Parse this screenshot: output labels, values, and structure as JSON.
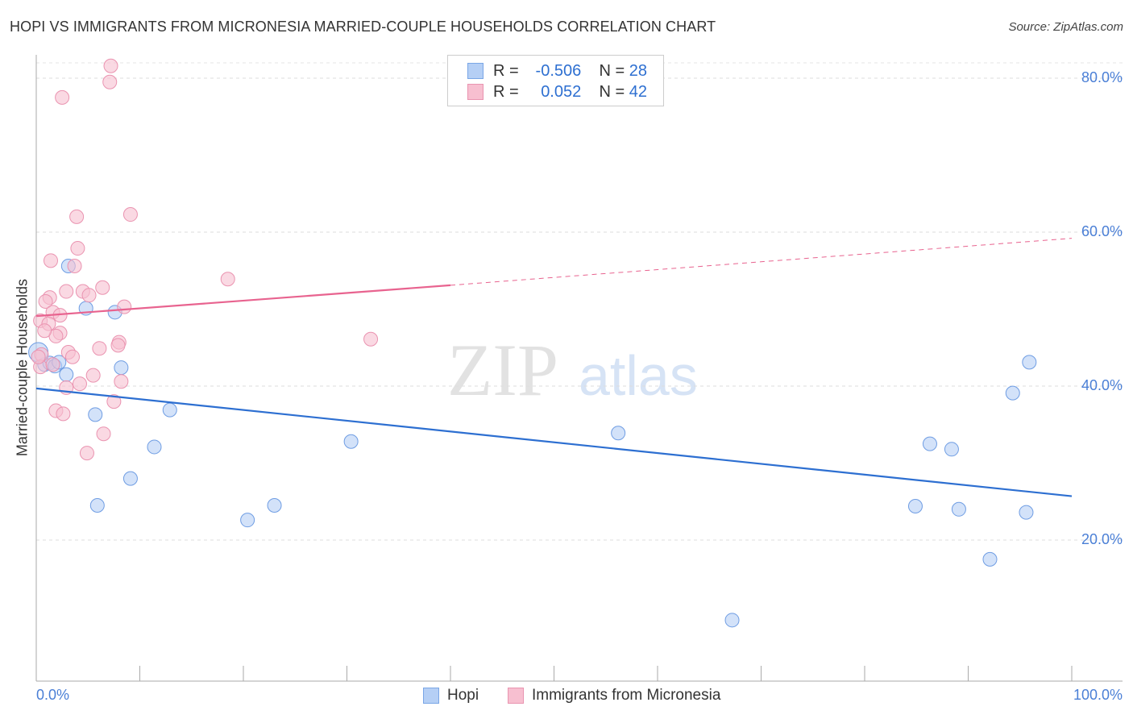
{
  "title": "HOPI VS IMMIGRANTS FROM MICRONESIA MARRIED-COUPLE HOUSEHOLDS CORRELATION CHART",
  "source": "Source: ZipAtlas.com",
  "watermark": "ZIPatlas",
  "colors": {
    "hopi": "#2d6fd1",
    "hopi_fill": "#b5cff5",
    "micronesia": "#e8638f",
    "micronesia_fill": "#f7bfd0"
  },
  "legend": {
    "hopi": {
      "r_label": "R =",
      "r": "-0.506",
      "n_label": "N =",
      "n": "28"
    },
    "micronesia": {
      "r_label": "R =",
      "r": "0.052",
      "n_label": "N =",
      "n": "42"
    }
  },
  "chart_data": {
    "type": "scatter",
    "title": "HOPI VS IMMIGRANTS FROM MICRONESIA MARRIED-COUPLE HOUSEHOLDS CORRELATION CHART",
    "xlabel": "",
    "ylabel": "Married-couple Households",
    "xlim": [
      0,
      100
    ],
    "ylim": [
      0,
      85
    ],
    "x_tick_labels": [
      "0.0%",
      "100.0%"
    ],
    "y_ticks": [
      20,
      40,
      60,
      80
    ],
    "y_tick_labels": [
      "20.0%",
      "40.0%",
      "60.0%",
      "80.0%"
    ],
    "legend_labels": [
      "Hopi",
      "Immigrants from Micronesia"
    ],
    "grid": true,
    "series": [
      {
        "name": "Hopi",
        "points": [
          [
            3.1,
            55.6
          ],
          [
            4.8,
            50.1
          ],
          [
            7.6,
            49.6
          ],
          [
            0.8,
            42.8
          ],
          [
            1.3,
            43.0
          ],
          [
            1.8,
            42.6
          ],
          [
            2.2,
            43.1
          ],
          [
            2.9,
            41.5
          ],
          [
            8.2,
            42.4
          ],
          [
            5.7,
            36.3
          ],
          [
            12.9,
            36.9
          ],
          [
            11.4,
            32.1
          ],
          [
            5.9,
            24.5
          ],
          [
            9.1,
            28.0
          ],
          [
            20.4,
            22.6
          ],
          [
            23.0,
            24.5
          ],
          [
            30.4,
            32.8
          ],
          [
            56.2,
            33.9
          ],
          [
            67.2,
            9.6
          ],
          [
            86.3,
            32.5
          ],
          [
            88.4,
            31.8
          ],
          [
            84.9,
            24.4
          ],
          [
            89.1,
            24.0
          ],
          [
            95.6,
            23.6
          ],
          [
            92.1,
            17.5
          ],
          [
            94.3,
            39.1
          ],
          [
            95.9,
            43.1
          ],
          [
            0.2,
            44.4
          ]
        ],
        "trend": {
          "x": [
            0,
            100
          ],
          "y": [
            39.7,
            25.7
          ]
        }
      },
      {
        "name": "Immigrants from Micronesia",
        "points": [
          [
            7.2,
            81.6
          ],
          [
            7.1,
            79.5
          ],
          [
            2.5,
            77.5
          ],
          [
            3.9,
            62.0
          ],
          [
            9.1,
            62.3
          ],
          [
            4.0,
            57.9
          ],
          [
            1.4,
            56.3
          ],
          [
            3.7,
            55.6
          ],
          [
            18.5,
            53.9
          ],
          [
            6.4,
            52.8
          ],
          [
            2.9,
            52.3
          ],
          [
            4.5,
            52.3
          ],
          [
            5.1,
            51.8
          ],
          [
            1.3,
            51.5
          ],
          [
            0.9,
            51.0
          ],
          [
            8.5,
            50.3
          ],
          [
            1.6,
            49.6
          ],
          [
            2.3,
            49.2
          ],
          [
            0.4,
            48.5
          ],
          [
            1.2,
            48.1
          ],
          [
            2.3,
            46.9
          ],
          [
            1.9,
            46.5
          ],
          [
            32.3,
            46.1
          ],
          [
            8.0,
            45.7
          ],
          [
            7.9,
            45.3
          ],
          [
            6.1,
            44.9
          ],
          [
            3.1,
            44.4
          ],
          [
            3.5,
            43.8
          ],
          [
            0.5,
            44.1
          ],
          [
            5.5,
            41.4
          ],
          [
            4.2,
            40.3
          ],
          [
            8.2,
            40.6
          ],
          [
            2.9,
            39.8
          ],
          [
            7.5,
            38.0
          ],
          [
            1.9,
            36.8
          ],
          [
            2.6,
            36.4
          ],
          [
            6.5,
            33.8
          ],
          [
            4.9,
            31.3
          ],
          [
            0.4,
            42.5
          ],
          [
            0.2,
            43.8
          ],
          [
            0.8,
            47.2
          ],
          [
            1.6,
            42.8
          ]
        ],
        "trend": {
          "x": [
            0,
            40,
            100
          ],
          "y": [
            49.1,
            53.1,
            59.2
          ],
          "solid_until": 40
        }
      }
    ]
  }
}
